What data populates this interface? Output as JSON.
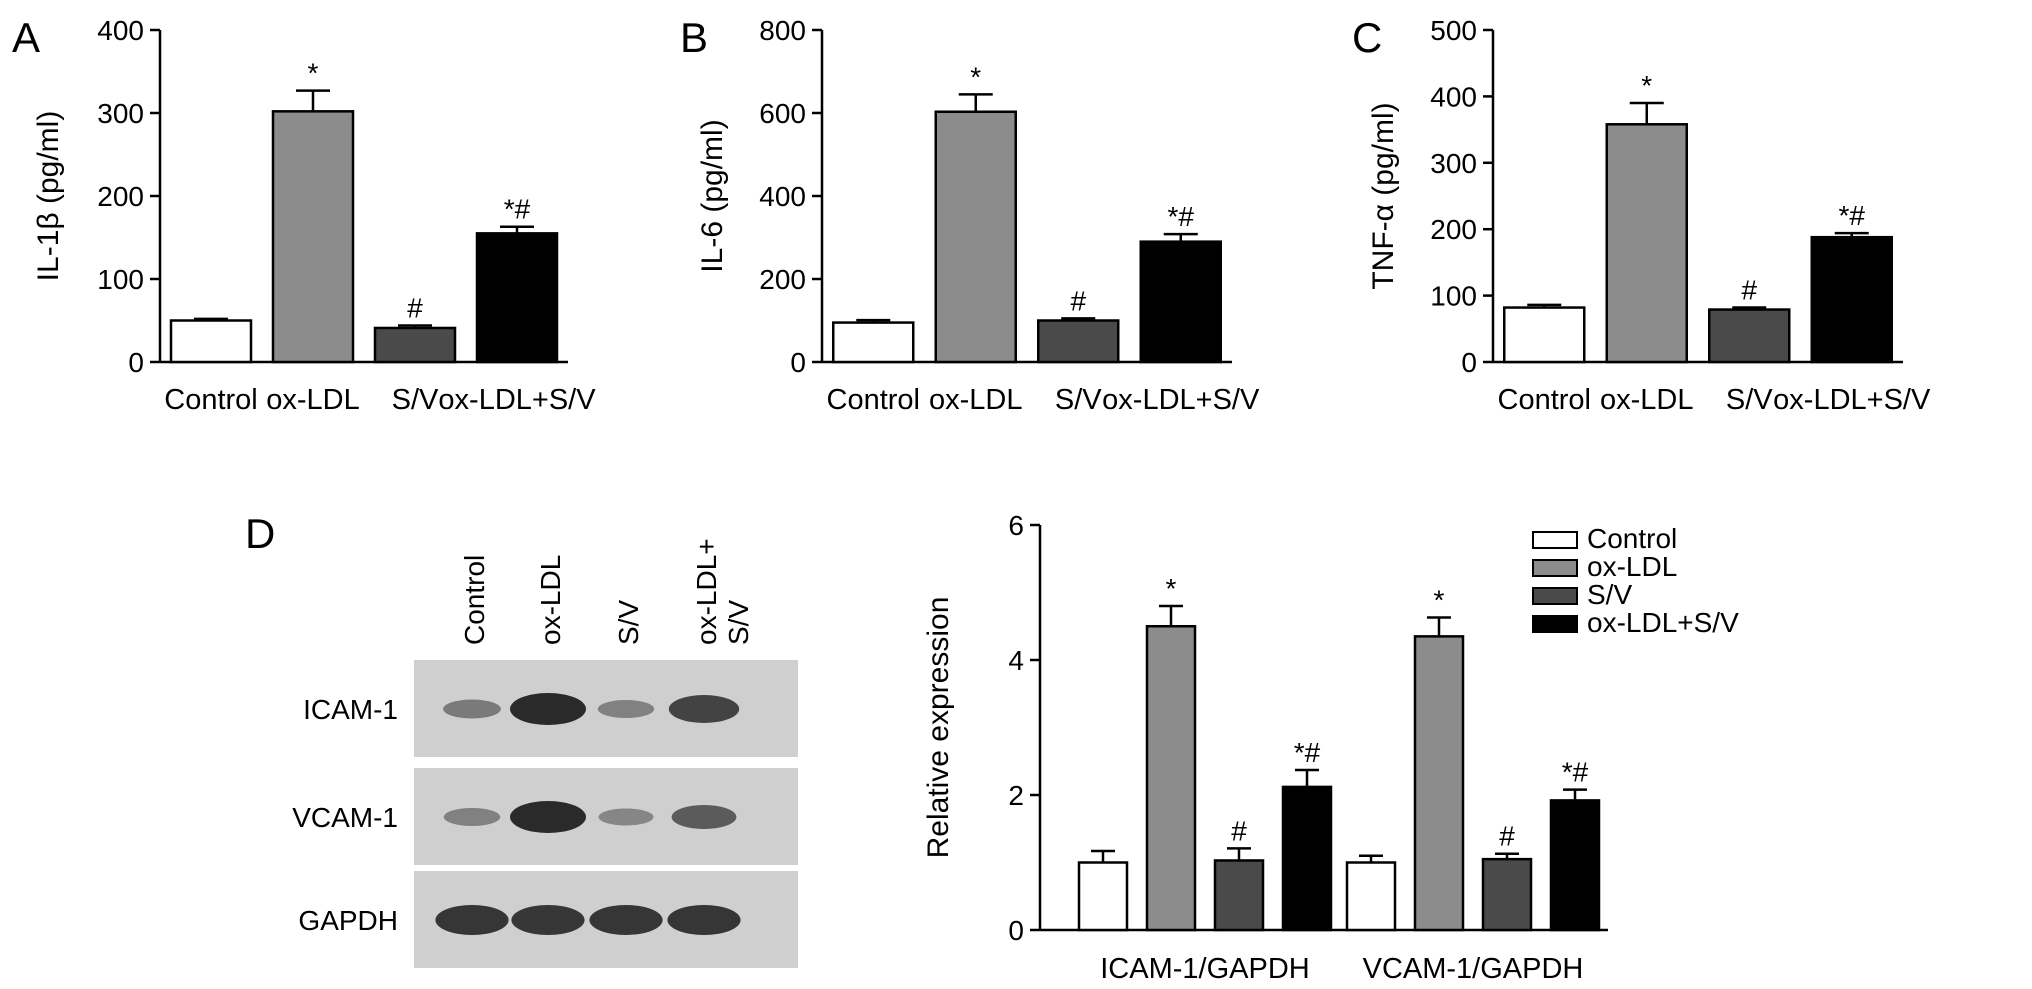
{
  "colors": {
    "control": "#ffffff",
    "ox_ldl": "#8c8c8c",
    "s_v": "#4a4a4a",
    "ox_ldl_s_v": "#000000",
    "axis": "#000000",
    "blot_bg": "#cfcfcf",
    "band": "#2a2a2a"
  },
  "chart_data": [
    {
      "panel": "A",
      "type": "bar",
      "ylabel": "IL-1β (pg/ml)",
      "ylim": [
        0,
        400
      ],
      "yticks": [
        0,
        100,
        200,
        300,
        400
      ],
      "categories": [
        "Control",
        "ox-LDL",
        "S/V",
        "ox-LDL+S/V"
      ],
      "values": [
        50,
        302,
        41,
        155
      ],
      "errors": [
        2,
        25,
        3,
        8
      ],
      "annotations": [
        "",
        "*",
        "#",
        "*#"
      ]
    },
    {
      "panel": "B",
      "type": "bar",
      "ylabel": "IL-6 (pg/ml)",
      "ylim": [
        0,
        800
      ],
      "yticks": [
        0,
        200,
        400,
        600,
        800
      ],
      "categories": [
        "Control",
        "ox-LDL",
        "S/V",
        "ox-LDL+S/V"
      ],
      "values": [
        95,
        603,
        100,
        290
      ],
      "errors": [
        6,
        42,
        5,
        18
      ],
      "annotations": [
        "",
        "*",
        "#",
        "*#"
      ]
    },
    {
      "panel": "C",
      "type": "bar",
      "ylabel": "TNF-α (pg/ml)",
      "ylim": [
        0,
        500
      ],
      "yticks": [
        0,
        100,
        200,
        300,
        400,
        500
      ],
      "categories": [
        "Control",
        "ox-LDL",
        "S/V",
        "ox-LDL+S/V"
      ],
      "values": [
        82,
        358,
        79,
        188
      ],
      "errors": [
        4,
        32,
        3,
        6
      ],
      "annotations": [
        "",
        "*",
        "#",
        "*#"
      ]
    },
    {
      "panel": "D",
      "type": "bar",
      "ylabel": "Relative expression",
      "ylim": [
        0,
        6
      ],
      "yticks": [
        0,
        2,
        4,
        6
      ],
      "categories": [
        "ICAM-1/GAPDH",
        "VCAM-1/GAPDH"
      ],
      "legend_position": "top-right",
      "series": [
        {
          "name": "Control",
          "values": [
            1.0,
            1.0
          ],
          "errors": [
            0.17,
            0.1
          ],
          "annotations": [
            "",
            ""
          ]
        },
        {
          "name": "ox-LDL",
          "values": [
            4.5,
            4.35
          ],
          "errors": [
            0.3,
            0.28
          ],
          "annotations": [
            "*",
            "*"
          ]
        },
        {
          "name": "S/V",
          "values": [
            1.03,
            1.05
          ],
          "errors": [
            0.18,
            0.08
          ],
          "annotations": [
            "#",
            "#"
          ]
        },
        {
          "name": "ox-LDL+S/V",
          "values": [
            2.12,
            1.92
          ],
          "errors": [
            0.25,
            0.16
          ],
          "annotations": [
            "*#",
            "*#"
          ]
        }
      ]
    }
  ],
  "blot": {
    "panel": "D",
    "lanes": [
      "Control",
      "ox-LDL",
      "S/V",
      "ox-LDL+\nS/V"
    ],
    "rows": [
      {
        "label": "ICAM-1",
        "intensity": [
          0.35,
          1.0,
          0.3,
          0.8
        ]
      },
      {
        "label": "VCAM-1",
        "intensity": [
          0.3,
          1.0,
          0.25,
          0.6
        ]
      },
      {
        "label": "GAPDH",
        "intensity": [
          0.9,
          0.9,
          0.9,
          0.9
        ]
      }
    ]
  }
}
